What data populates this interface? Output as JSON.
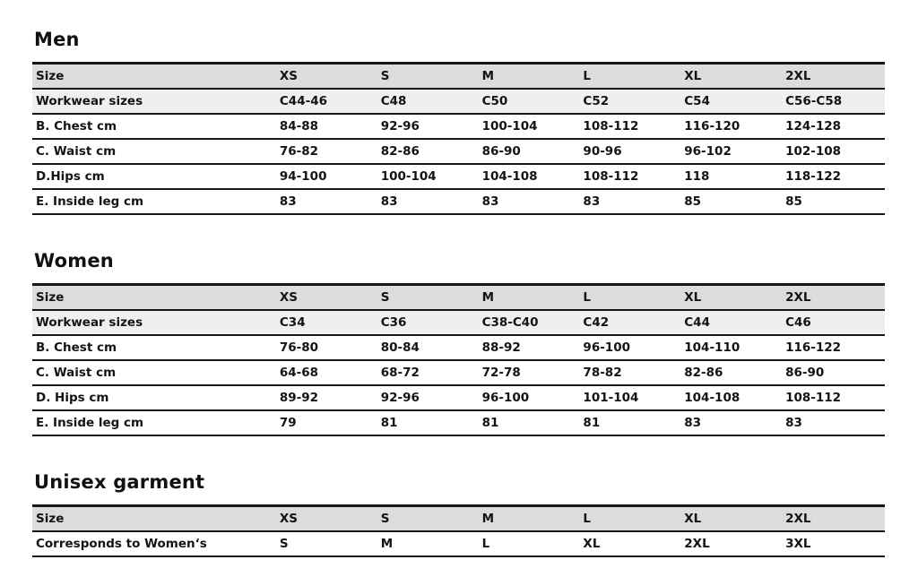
{
  "colors": {
    "header_row_bg": "#dcdcdc",
    "subheader_row_bg": "#efefef",
    "rule": "#161616",
    "text": "#141414",
    "page_bg": "#ffffff"
  },
  "sections": [
    {
      "title": "Men",
      "header": [
        "Size",
        "XS",
        "S",
        "M",
        "L",
        "XL",
        "2XL"
      ],
      "subheader": [
        "Workwear sizes",
        "C44-46",
        "C48",
        "C50",
        "C52",
        "C54",
        "C56-C58"
      ],
      "rows": [
        [
          "B. Chest cm",
          "84-88",
          "92-96",
          "100-104",
          "108-112",
          "116-120",
          "124-128"
        ],
        [
          "C. Waist cm",
          "76-82",
          "82-86",
          "86-90",
          "90-96",
          "96-102",
          "102-108"
        ],
        [
          "D.Hips cm",
          "94-100",
          "100-104",
          "104-108",
          "108-112",
          "118",
          "118-122"
        ],
        [
          "E. Inside leg cm",
          "83",
          "83",
          "83",
          "83",
          "85",
          "85"
        ]
      ]
    },
    {
      "title": "Women",
      "header": [
        "Size",
        "XS",
        "S",
        "M",
        "L",
        "XL",
        "2XL"
      ],
      "subheader": [
        "Workwear sizes",
        "C34",
        "C36",
        "C38-C40",
        "C42",
        "C44",
        "C46"
      ],
      "rows": [
        [
          "B. Chest cm",
          "76-80",
          "80-84",
          "88-92",
          "96-100",
          "104-110",
          "116-122"
        ],
        [
          "C. Waist cm",
          "64-68",
          "68-72",
          "72-78",
          "78-82",
          "82-86",
          "86-90"
        ],
        [
          "D. Hips cm",
          "89-92",
          "92-96",
          "96-100",
          "101-104",
          "104-108",
          "108-112"
        ],
        [
          "E. Inside leg cm",
          "79",
          "81",
          "81",
          "81",
          "83",
          "83"
        ]
      ]
    },
    {
      "title": "Unisex garment",
      "header": [
        "Size",
        "XS",
        "S",
        "M",
        "L",
        "XL",
        "2XL"
      ],
      "rows": [
        [
          "Corresponds to Women‘s",
          "S",
          "M",
          "L",
          "XL",
          "2XL",
          "3XL"
        ]
      ]
    }
  ]
}
